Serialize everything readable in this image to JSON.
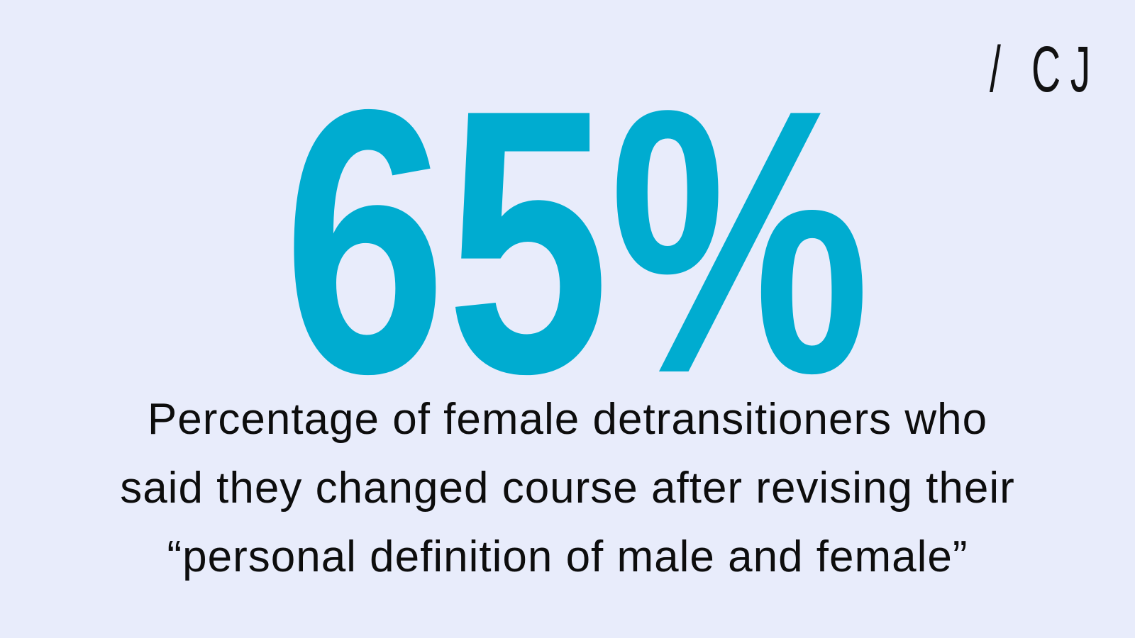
{
  "logo": "/ CJ",
  "stat": "65%",
  "caption": {
    "lines": [
      "Percentage of female detransitioners who",
      "said they changed course after revising their",
      "“personal definition of male and female”"
    ]
  }
}
